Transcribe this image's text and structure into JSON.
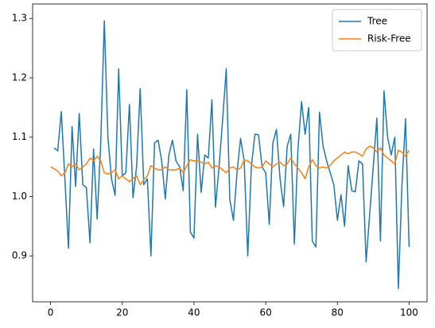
{
  "chart_data": {
    "type": "line",
    "x": [
      0,
      1,
      2,
      3,
      4,
      5,
      6,
      7,
      8,
      9,
      10,
      11,
      12,
      13,
      14,
      15,
      16,
      17,
      18,
      19,
      20,
      21,
      22,
      23,
      24,
      25,
      26,
      27,
      28,
      29,
      30,
      31,
      32,
      33,
      34,
      35,
      36,
      37,
      38,
      39,
      40,
      41,
      42,
      43,
      44,
      45,
      46,
      47,
      48,
      49,
      50,
      51,
      52,
      53,
      54,
      55,
      56,
      57,
      58,
      59,
      60,
      61,
      62,
      63,
      64,
      65,
      66,
      67,
      68,
      69,
      70,
      71,
      72,
      73,
      74,
      75,
      76,
      77,
      78,
      79,
      80,
      81,
      82,
      83,
      84,
      85,
      86,
      87,
      88,
      89,
      90,
      91,
      92,
      93,
      94,
      95,
      96,
      97,
      98,
      99,
      100
    ],
    "series": [
      {
        "name": "Tree",
        "color": "#1f77b4",
        "values": [
          null,
          1.082,
          1.077,
          1.143,
          1.03,
          0.913,
          1.118,
          1.017,
          1.14,
          1.02,
          1.015,
          0.922,
          1.08,
          0.962,
          1.09,
          1.296,
          1.1,
          1.03,
          1.002,
          1.215,
          1.035,
          1.04,
          1.155,
          0.998,
          1.05,
          1.182,
          1.02,
          1.03,
          0.9,
          1.09,
          1.095,
          1.06,
          0.996,
          1.07,
          1.095,
          1.06,
          1.05,
          1.01,
          1.18,
          0.94,
          0.93,
          1.105,
          1.007,
          1.07,
          1.065,
          1.163,
          0.982,
          1.05,
          1.13,
          1.215,
          0.995,
          0.96,
          1.04,
          1.098,
          1.06,
          0.9,
          1.05,
          1.105,
          1.104,
          1.05,
          1.04,
          0.953,
          1.09,
          1.113,
          1.03,
          0.983,
          1.085,
          1.105,
          0.92,
          1.08,
          1.16,
          1.105,
          1.15,
          0.925,
          0.915,
          1.142,
          1.085,
          1.06,
          1.04,
          1.02,
          0.96,
          1.003,
          0.95,
          1.052,
          1.01,
          1.008,
          1.06,
          1.055,
          0.89,
          0.97,
          1.05,
          1.132,
          0.925,
          1.178,
          1.1,
          1.07,
          1.1,
          0.845,
          1.02,
          1.131,
          0.915
        ]
      },
      {
        "name": "Risk-Free",
        "color": "#ff7f0e",
        "values": [
          1.05,
          1.047,
          1.043,
          1.035,
          1.04,
          1.055,
          1.05,
          1.055,
          1.045,
          1.05,
          1.055,
          1.065,
          1.06,
          1.068,
          1.06,
          1.04,
          1.038,
          1.04,
          1.045,
          1.03,
          1.035,
          1.03,
          1.025,
          1.03,
          1.035,
          1.02,
          1.028,
          1.035,
          1.052,
          1.048,
          1.045,
          1.045,
          1.05,
          1.045,
          1.045,
          1.045,
          1.048,
          1.04,
          1.052,
          1.062,
          1.06,
          1.06,
          1.058,
          1.055,
          1.058,
          1.048,
          1.052,
          1.05,
          1.045,
          1.04,
          1.048,
          1.05,
          1.045,
          1.048,
          1.062,
          1.06,
          1.055,
          1.05,
          1.048,
          1.05,
          1.06,
          1.055,
          1.05,
          1.055,
          1.058,
          1.052,
          1.055,
          1.065,
          1.055,
          1.048,
          1.04,
          1.03,
          1.05,
          1.062,
          1.052,
          1.048,
          1.05,
          1.048,
          1.052,
          1.06,
          1.065,
          1.07,
          1.075,
          1.072,
          1.075,
          1.075,
          1.072,
          1.068,
          1.08,
          1.085,
          1.082,
          1.075,
          1.082,
          1.07,
          1.065,
          1.06,
          1.055,
          1.078,
          1.075,
          1.068,
          1.078
        ]
      }
    ],
    "xlim": [
      -5,
      105
    ],
    "ylim": [
      0.8227,
      1.3244
    ],
    "xticks": [
      0,
      20,
      40,
      60,
      80,
      100
    ],
    "yticks": [
      0.9,
      {
        "value": 1.0,
        "label": "1.0"
      },
      1.1,
      1.2,
      1.3
    ],
    "legend": "upper right"
  }
}
